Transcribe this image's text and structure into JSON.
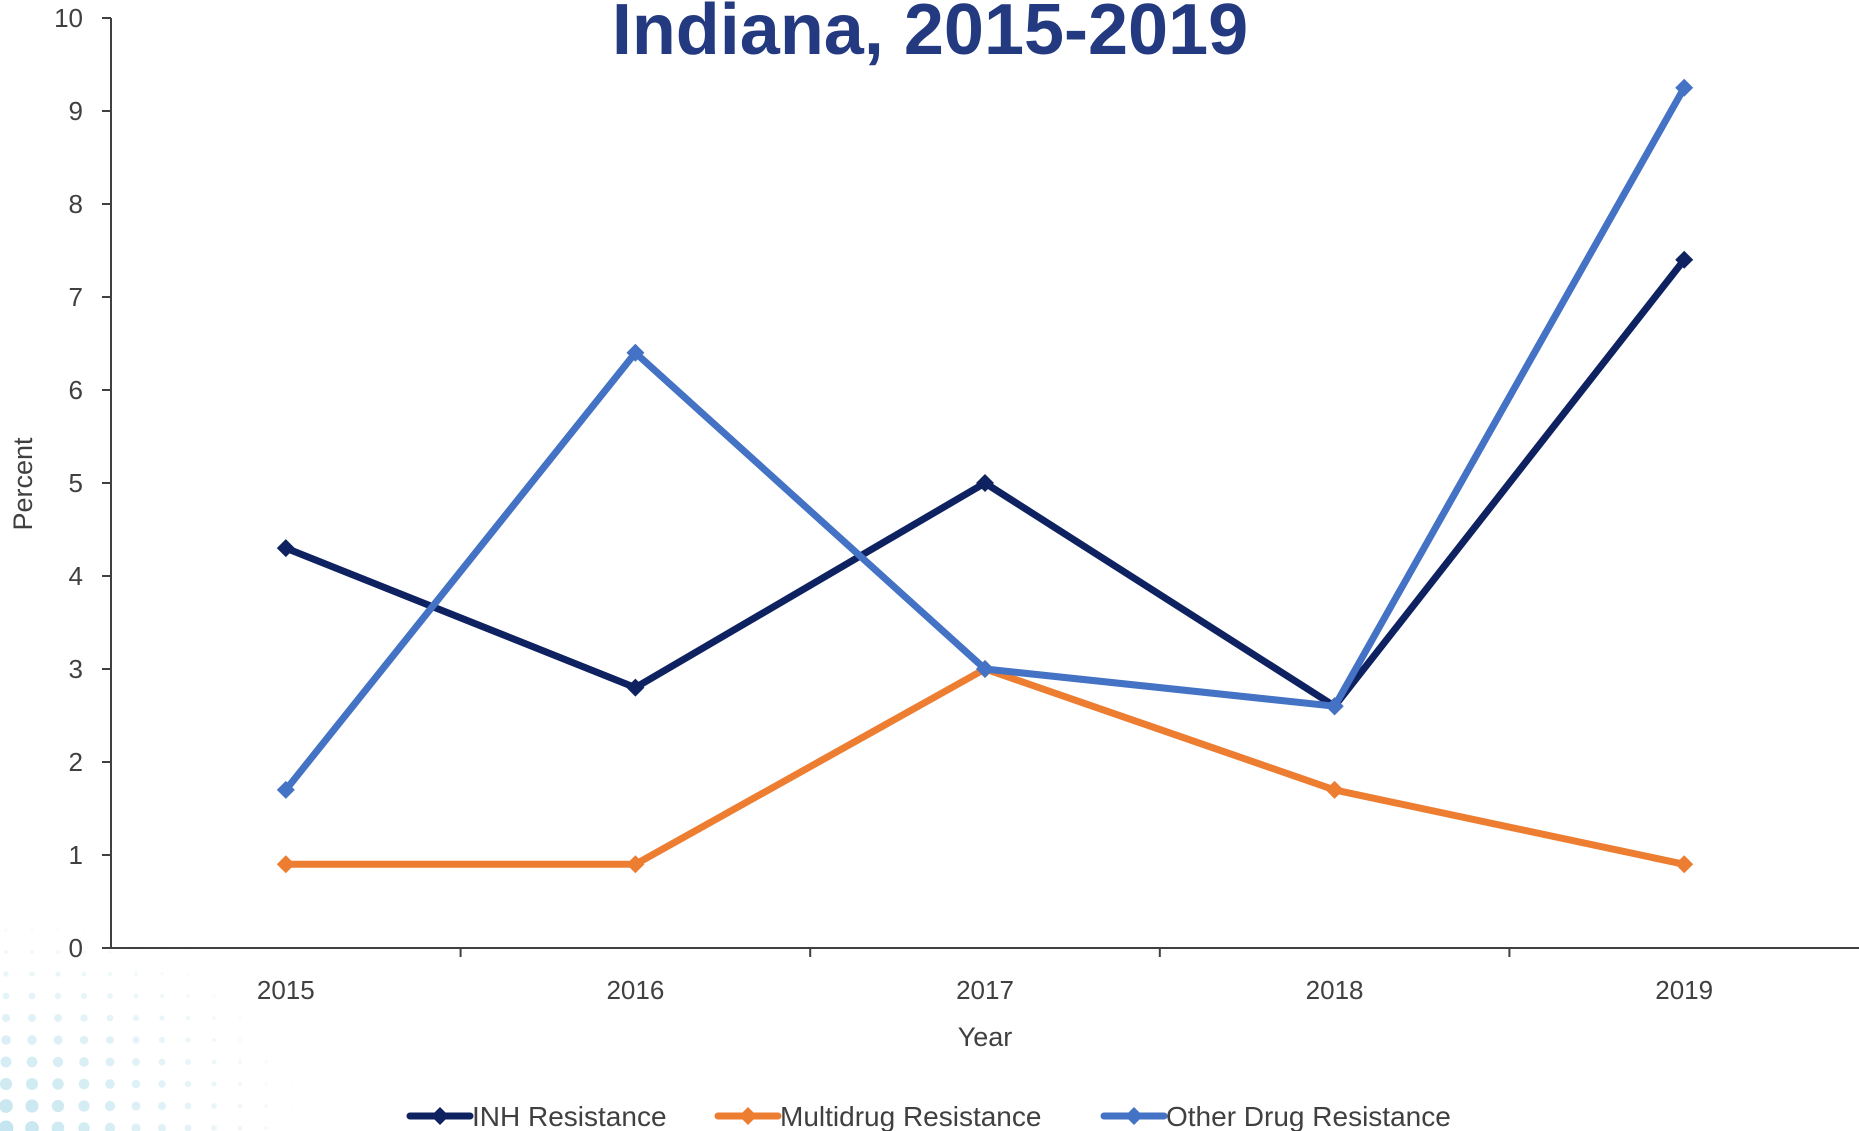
{
  "chart_data": {
    "type": "line",
    "title": "Indiana, 2015-2019",
    "xlabel": "Year",
    "ylabel": "Percent",
    "categories": [
      "2015",
      "2016",
      "2017",
      "2018",
      "2019"
    ],
    "ylim": [
      0,
      10
    ],
    "yticks": [
      "0",
      "1",
      "2",
      "3",
      "4",
      "5",
      "6",
      "7",
      "8",
      "9",
      "10"
    ],
    "grid": false,
    "legend_position": "bottom",
    "series": [
      {
        "name": "INH Resistance",
        "color": "#0e2160",
        "values": [
          4.3,
          2.8,
          5.0,
          2.6,
          7.4
        ]
      },
      {
        "name": "Multidrug Resistance",
        "color": "#ed7d31",
        "values": [
          0.9,
          0.9,
          3.0,
          1.7,
          0.9
        ]
      },
      {
        "name": "Other Drug Resistance",
        "color": "#4472c4",
        "values": [
          1.7,
          6.4,
          3.0,
          2.6,
          9.25
        ]
      }
    ]
  }
}
